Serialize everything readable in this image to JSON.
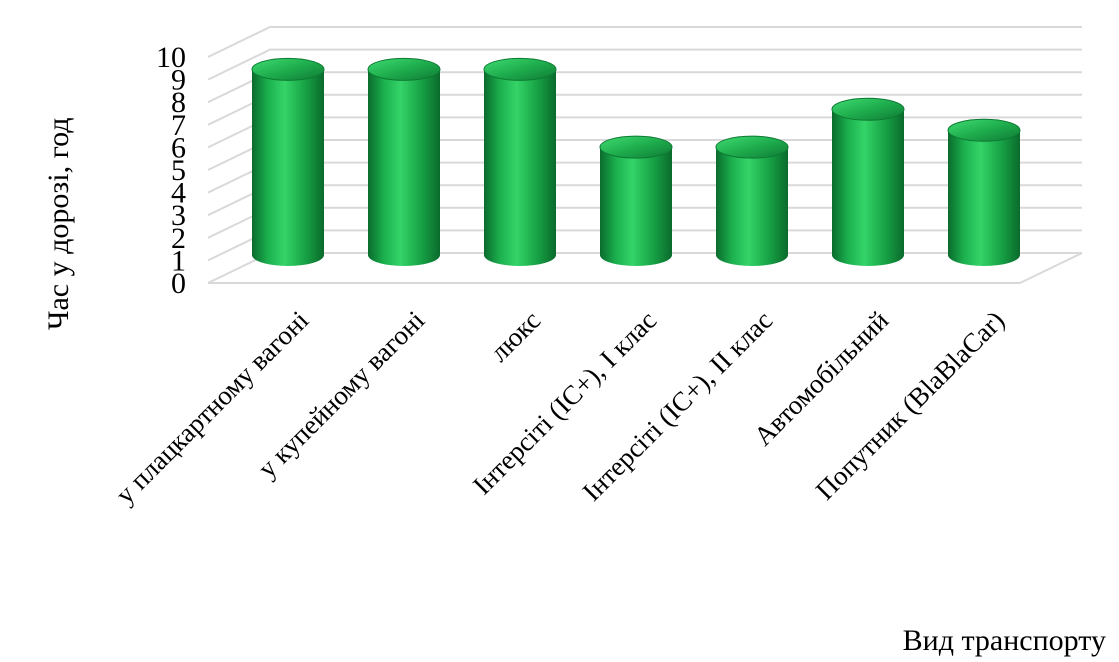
{
  "chart_data": {
    "type": "bar",
    "style": "3d-cylinder",
    "color": "#1faa4c",
    "ylabel": "Час у дорозі, год",
    "xlabel": "Вид транспорту",
    "ylim": [
      0,
      10
    ],
    "yticks": [
      "0",
      "1",
      "2",
      "3",
      "4",
      "5",
      "6",
      "7",
      "8",
      "9",
      "10"
    ],
    "categories": [
      "у плацкартному вагоні",
      "у купейному вагоні",
      "люкс",
      "Інтерсіті (IC+), I клас",
      "Інтерсіті (IC+), II клас",
      "Автомобільний",
      "Попутник (BlaBlaCar)"
    ],
    "values": [
      9.5,
      9.5,
      9.5,
      5.8,
      5.8,
      7.6,
      6.6
    ],
    "grid": true,
    "legend": "none"
  }
}
